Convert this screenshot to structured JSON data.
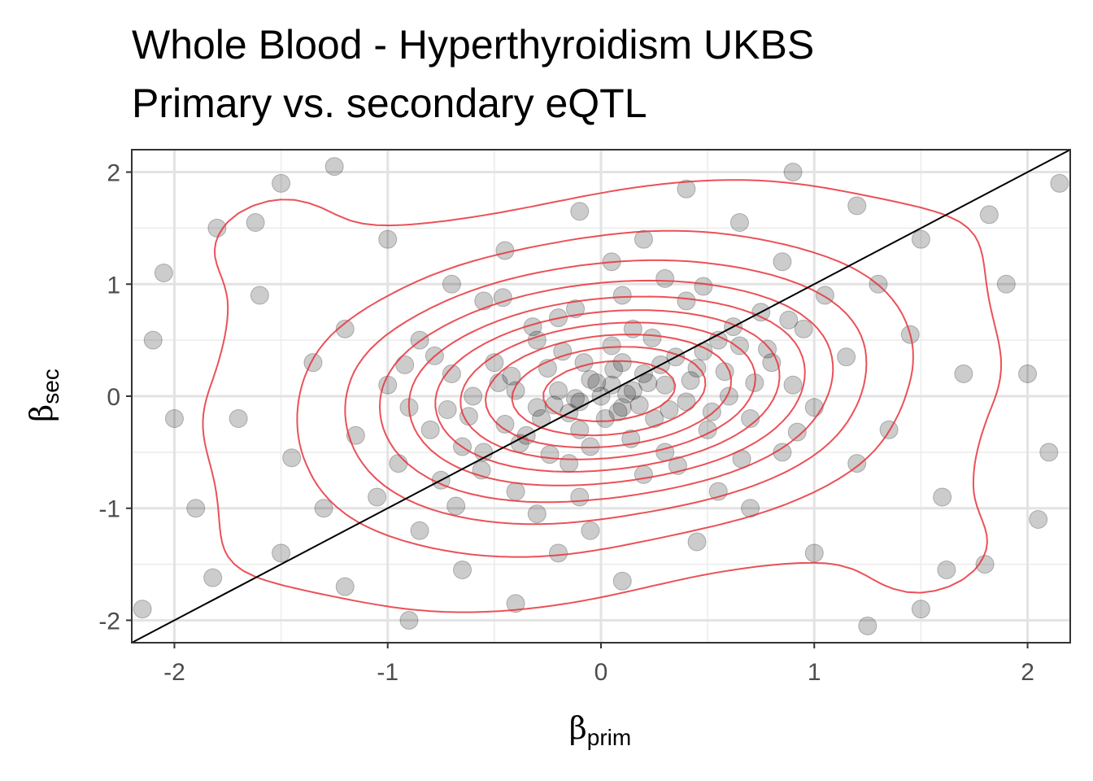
{
  "chart_data": {
    "type": "scatter",
    "title": "Whole Blood - Hyperthyroidism UKBS",
    "subtitle": "Primary vs. secondary eQTL",
    "xlabel_symbol": "β",
    "xlabel_sub": "prim",
    "ylabel_symbol": "β",
    "ylabel_sub": "sec",
    "xlim": [
      -2.2,
      2.2
    ],
    "ylim": [
      -2.2,
      2.2
    ],
    "x_ticks": [
      -2,
      -1,
      0,
      1,
      2
    ],
    "y_ticks": [
      -2,
      -1,
      0,
      1,
      2
    ],
    "x_tick_labels": [
      "-2",
      "-1",
      "0",
      "1",
      "2"
    ],
    "y_tick_labels": [
      "-2",
      "-1",
      "0",
      "1",
      "2"
    ],
    "grid": true,
    "reference_line": {
      "slope": 1,
      "intercept": 0,
      "color": "#000000"
    },
    "point_color": "#000000",
    "point_alpha": 0.2,
    "contour_color": "#e8333b",
    "contour_type": "2d-density",
    "points": [
      [
        0.0,
        0.0
      ],
      [
        0.05,
        0.1
      ],
      [
        -0.1,
        -0.05
      ],
      [
        0.1,
        -0.1
      ],
      [
        -0.05,
        0.15
      ],
      [
        0.15,
        0.05
      ],
      [
        -0.15,
        -0.15
      ],
      [
        0.2,
        0.2
      ],
      [
        0.02,
        -0.2
      ],
      [
        -0.2,
        0.05
      ],
      [
        0.3,
        0.1
      ],
      [
        -0.3,
        -0.1
      ],
      [
        0.1,
        0.3
      ],
      [
        -0.1,
        -0.3
      ],
      [
        0.25,
        -0.2
      ],
      [
        -0.25,
        0.25
      ],
      [
        0.35,
        0.35
      ],
      [
        -0.35,
        -0.35
      ],
      [
        0.4,
        -0.05
      ],
      [
        -0.4,
        0.05
      ],
      [
        0.05,
        0.45
      ],
      [
        -0.05,
        -0.45
      ],
      [
        0.45,
        0.25
      ],
      [
        -0.45,
        -0.25
      ],
      [
        0.5,
        -0.3
      ],
      [
        -0.5,
        0.3
      ],
      [
        0.55,
        0.5
      ],
      [
        -0.55,
        -0.5
      ],
      [
        0.15,
        0.6
      ],
      [
        -0.15,
        -0.6
      ],
      [
        0.6,
        0.0
      ],
      [
        -0.6,
        0.0
      ],
      [
        0.3,
        -0.5
      ],
      [
        -0.3,
        0.5
      ],
      [
        0.65,
        0.45
      ],
      [
        -0.65,
        -0.45
      ],
      [
        0.7,
        -0.2
      ],
      [
        -0.7,
        0.2
      ],
      [
        0.2,
        -0.7
      ],
      [
        -0.2,
        0.7
      ],
      [
        0.75,
        0.75
      ],
      [
        -0.75,
        -0.75
      ],
      [
        0.8,
        0.3
      ],
      [
        -0.8,
        -0.3
      ],
      [
        0.4,
        0.85
      ],
      [
        -0.4,
        -0.85
      ],
      [
        0.85,
        -0.5
      ],
      [
        -0.85,
        0.5
      ],
      [
        0.1,
        0.9
      ],
      [
        -0.1,
        -0.9
      ],
      [
        0.9,
        0.1
      ],
      [
        -0.9,
        -0.1
      ],
      [
        0.55,
        -0.85
      ],
      [
        -0.55,
        0.85
      ],
      [
        0.95,
        0.6
      ],
      [
        -0.95,
        -0.6
      ],
      [
        1.0,
        -0.1
      ],
      [
        -1.0,
        0.1
      ],
      [
        0.3,
        1.05
      ],
      [
        -0.3,
        -1.05
      ],
      [
        1.05,
        0.9
      ],
      [
        -1.05,
        -0.9
      ],
      [
        0.7,
        -1.0
      ],
      [
        -0.7,
        1.0
      ],
      [
        1.15,
        0.35
      ],
      [
        -1.15,
        -0.35
      ],
      [
        0.05,
        1.2
      ],
      [
        -0.05,
        -1.2
      ],
      [
        1.2,
        -0.6
      ],
      [
        -1.2,
        0.6
      ],
      [
        0.85,
        1.2
      ],
      [
        -0.85,
        -1.2
      ],
      [
        1.3,
        1.0
      ],
      [
        -1.3,
        -1.0
      ],
      [
        0.45,
        -1.3
      ],
      [
        -0.45,
        1.3
      ],
      [
        1.35,
        -0.3
      ],
      [
        -1.35,
        0.3
      ],
      [
        0.2,
        1.4
      ],
      [
        -0.2,
        -1.4
      ],
      [
        1.45,
        0.55
      ],
      [
        -1.45,
        -0.55
      ],
      [
        1.0,
        -1.4
      ],
      [
        -1.0,
        1.4
      ],
      [
        1.5,
        1.4
      ],
      [
        -1.5,
        -1.4
      ],
      [
        0.65,
        1.55
      ],
      [
        -0.65,
        -1.55
      ],
      [
        1.6,
        -0.9
      ],
      [
        -1.6,
        0.9
      ],
      [
        0.1,
        -1.65
      ],
      [
        -0.1,
        1.65
      ],
      [
        1.7,
        0.2
      ],
      [
        -1.7,
        -0.2
      ],
      [
        1.2,
        1.7
      ],
      [
        -1.2,
        -1.7
      ],
      [
        1.8,
        -1.5
      ],
      [
        -1.8,
        1.5
      ],
      [
        0.4,
        1.85
      ],
      [
        -0.4,
        -1.85
      ],
      [
        1.9,
        1.0
      ],
      [
        -1.9,
        -1.0
      ],
      [
        1.5,
        -1.9
      ],
      [
        -1.5,
        1.9
      ],
      [
        2.0,
        0.2
      ],
      [
        -2.0,
        -0.2
      ],
      [
        0.9,
        2.0
      ],
      [
        -0.9,
        -2.0
      ],
      [
        2.1,
        -0.5
      ],
      [
        -2.1,
        0.5
      ],
      [
        2.15,
        1.9
      ],
      [
        -2.15,
        -1.9
      ],
      [
        0.12,
        0.02
      ],
      [
        -0.02,
        0.12
      ],
      [
        0.08,
        -0.14
      ],
      [
        -0.12,
        -0.02
      ],
      [
        0.22,
        0.12
      ],
      [
        -0.22,
        -0.08
      ],
      [
        0.06,
        0.24
      ],
      [
        0.18,
        -0.08
      ],
      [
        -0.08,
        0.3
      ],
      [
        0.28,
        0.28
      ],
      [
        -0.28,
        -0.2
      ],
      [
        0.32,
        -0.12
      ],
      [
        -0.18,
        0.4
      ],
      [
        0.42,
        0.14
      ],
      [
        -0.42,
        0.18
      ],
      [
        0.14,
        -0.38
      ],
      [
        0.48,
        0.4
      ],
      [
        -0.38,
        -0.42
      ],
      [
        0.58,
        0.22
      ],
      [
        -0.48,
        0.12
      ],
      [
        0.24,
        0.52
      ],
      [
        -0.24,
        -0.52
      ],
      [
        0.52,
        -0.14
      ],
      [
        -0.62,
        -0.18
      ],
      [
        0.62,
        0.62
      ],
      [
        -0.32,
        0.62
      ],
      [
        0.72,
        0.12
      ],
      [
        -0.72,
        -0.12
      ],
      [
        0.36,
        -0.62
      ],
      [
        -0.12,
        0.78
      ],
      [
        0.78,
        0.42
      ],
      [
        -0.78,
        0.36
      ],
      [
        0.66,
        -0.56
      ],
      [
        -0.56,
        -0.66
      ],
      [
        0.88,
        0.68
      ],
      [
        -0.46,
        0.88
      ],
      [
        0.92,
        -0.32
      ],
      [
        -0.92,
        0.28
      ],
      [
        0.48,
        0.98
      ],
      [
        -0.68,
        -0.98
      ],
      [
        -1.62,
        1.55
      ],
      [
        1.62,
        -1.55
      ],
      [
        -1.82,
        -1.62
      ],
      [
        1.82,
        1.62
      ],
      [
        -2.05,
        1.1
      ],
      [
        2.05,
        -1.1
      ],
      [
        -1.25,
        2.05
      ],
      [
        1.25,
        -2.05
      ]
    ]
  }
}
